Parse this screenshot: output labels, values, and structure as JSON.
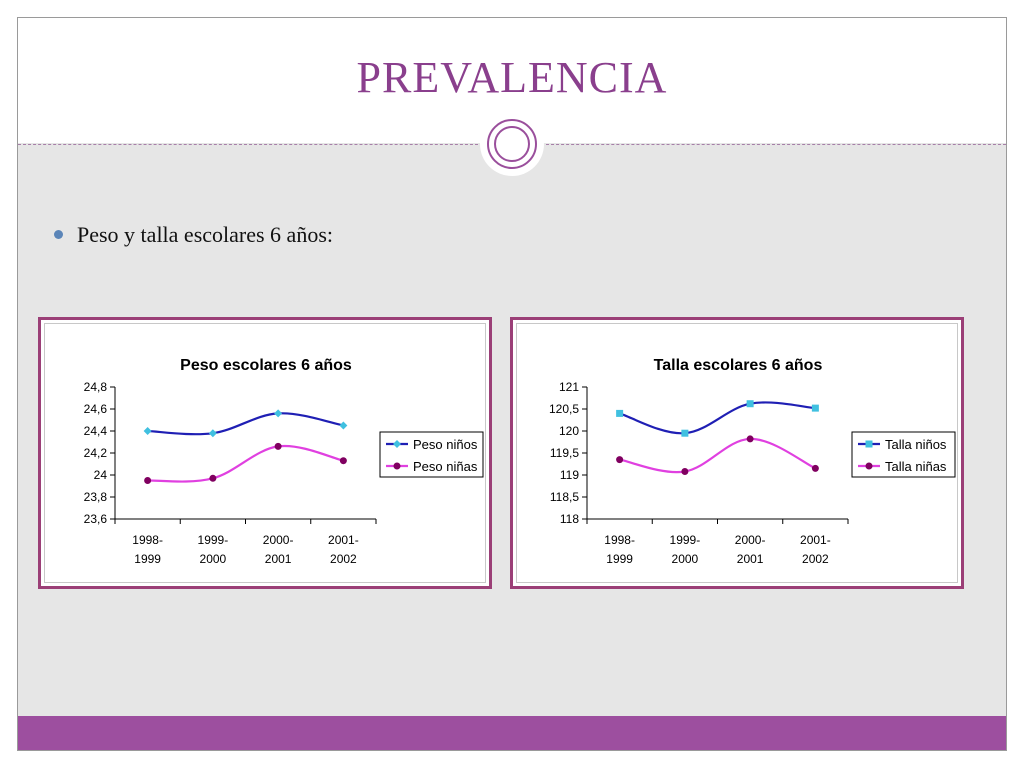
{
  "slide": {
    "title": "PREVALENCIA",
    "bullet": "Peso y talla  escolares 6 años:"
  },
  "chart_data": [
    {
      "type": "line",
      "title": "Peso escolares 6 años",
      "categories": [
        [
          "1998-",
          "1999"
        ],
        [
          "1999-",
          "2000"
        ],
        [
          "2000-",
          "2001"
        ],
        [
          "2001-",
          "2002"
        ]
      ],
      "series": [
        {
          "name": "Peso niños",
          "values": [
            24.4,
            24.38,
            24.56,
            24.45
          ],
          "color": "#1f1fb4",
          "marker": "diamond",
          "marker_color": "#40c0e0"
        },
        {
          "name": "Peso niñas",
          "values": [
            23.95,
            23.97,
            24.26,
            24.13
          ],
          "color": "#e040e0",
          "marker": "circle",
          "marker_color": "#800060"
        }
      ],
      "ylim": [
        23.6,
        24.8
      ],
      "yticks": [
        "23,6",
        "23,8",
        "24",
        "24,2",
        "24,4",
        "24,6",
        "24,8"
      ],
      "legend": "right",
      "grid": false
    },
    {
      "type": "line",
      "title": "Talla escolares 6 años",
      "categories": [
        [
          "1998-",
          "1999"
        ],
        [
          "1999-",
          "2000"
        ],
        [
          "2000-",
          "2001"
        ],
        [
          "2001-",
          "2002"
        ]
      ],
      "series": [
        {
          "name": "Talla niños",
          "values": [
            120.4,
            119.95,
            120.62,
            120.52
          ],
          "color": "#1f1fb4",
          "marker": "square",
          "marker_color": "#40c0e0"
        },
        {
          "name": "Talla niñas",
          "values": [
            119.35,
            119.08,
            119.82,
            119.15
          ],
          "color": "#e040e0",
          "marker": "circle",
          "marker_color": "#800060"
        }
      ],
      "ylim": [
        118,
        121
      ],
      "yticks": [
        "118",
        "118,5",
        "119",
        "119,5",
        "120",
        "120,5",
        "121"
      ],
      "legend": "right",
      "grid": false
    }
  ],
  "colors": {
    "title": "#8a3f8d",
    "frame_border": "#9b3f77",
    "bottom_bar": "#9d4f9f"
  }
}
